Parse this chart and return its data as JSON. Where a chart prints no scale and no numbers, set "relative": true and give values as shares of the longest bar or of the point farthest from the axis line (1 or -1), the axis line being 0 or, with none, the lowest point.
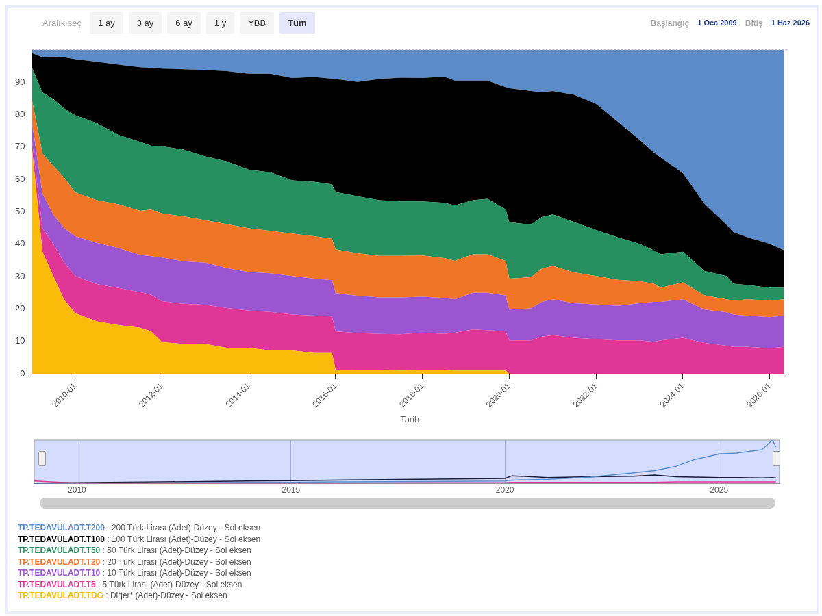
{
  "chart_data": [
    {
      "type": "other",
      "title": "Aralık seç",
      "categories": [
        "1 ay",
        "3 ay",
        "6 ay",
        "1 y",
        "YBB",
        "Tüm"
      ],
      "annotations": [
        "Başlangıç",
        "1 Oca 2009",
        "Bitiş",
        "1 Haz 2026"
      ]
    },
    {
      "type": "area",
      "stacked": true,
      "xlabel": "Tarih",
      "legend": "bottom",
      "x": [
        "2009-01",
        "2009-04",
        "2009-07",
        "2009-10",
        "2010-01",
        "2010-07",
        "2011-01",
        "2011-07",
        "2011-10",
        "2012-01",
        "2012-07",
        "2013-01",
        "2013-07",
        "2014-01",
        "2014-07",
        "2015-01",
        "2015-07",
        "2015-12",
        "2016-01",
        "2016-07",
        "2017-01",
        "2017-07",
        "2018-01",
        "2018-07",
        "2018-10",
        "2019-03",
        "2019-07",
        "2019-12",
        "2020-01",
        "2020-07",
        "2020-10",
        "2021-01",
        "2021-07",
        "2022-01",
        "2022-07",
        "2023-01",
        "2023-05",
        "2023-07",
        "2024-01",
        "2024-07",
        "2025-01",
        "2025-03",
        "2025-07",
        "2026-01",
        "2026-05"
      ],
      "xlim": [
        "2009-01",
        "2026-06"
      ],
      "xticks": [
        "2010-01",
        "2012-01",
        "2014-01",
        "2016-01",
        "2018-01",
        "2020-01",
        "2022-01",
        "2024-01",
        "2026-01"
      ],
      "ylim": [
        0,
        100
      ],
      "yticks": [
        0,
        10,
        20,
        30,
        40,
        50,
        60,
        70,
        80,
        90,
        {
          "value": 100,
          "label": null
        }
      ],
      "series": [
        {
          "name": "TP.TEDAVULADT.TDG : Diğer* (Adet)-Düzey - Sol eksen",
          "color": "#fbbc09",
          "values": [
            70.0,
            37.6,
            30.2,
            22.8,
            18.7,
            16.2,
            15.0,
            14.2,
            13.1,
            9.8,
            9.2,
            9.2,
            8.0,
            8.0,
            7.2,
            7.2,
            6.4,
            6.4,
            1.3,
            1.2,
            1.2,
            1.0,
            1.2,
            1.2,
            1.0,
            1.0,
            1.0,
            1.0,
            0,
            0,
            0,
            0,
            0,
            0,
            0,
            0,
            0,
            0,
            0,
            0,
            0,
            0,
            0,
            0,
            0
          ]
        },
        {
          "name": "TP.TEDAVULADT.T5 : 5 Türk Lirası (Adet)-Düzey - Sol eksen",
          "color": "#e03797",
          "values": [
            2.5,
            7.3,
            9.8,
            11.5,
            11.5,
            11.5,
            11.5,
            11.0,
            11.3,
            12.6,
            12.4,
            12.1,
            12.3,
            11.5,
            11.9,
            11.1,
            11.6,
            11.3,
            11.8,
            11.4,
            11.1,
            11.2,
            11.5,
            11.1,
            11.7,
            12.7,
            12.5,
            12.1,
            10.3,
            10.3,
            11.5,
            11.9,
            11.1,
            10.7,
            10.3,
            10.3,
            9.9,
            10.3,
            11.1,
            9.5,
            8.7,
            8.3,
            8.3,
            7.9,
            8.3
          ]
        },
        {
          "name": "TP.TEDAVULADT.T10 : 10 Türk Lirası (Adet)-Düzey - Sol eksen",
          "color": "#9c55d1",
          "values": [
            5.3,
            10.7,
            9.1,
            10.6,
            12.3,
            12.7,
            12.3,
            11.5,
            11.9,
            13.5,
            13.1,
            13.0,
            12.3,
            11.9,
            11.9,
            11.9,
            11.4,
            11.2,
            11.8,
            11.5,
            11.3,
            11.4,
            11.1,
            11.1,
            10.3,
            11.3,
            11.5,
            11.1,
            9.5,
            9.9,
            10.7,
            11.1,
            10.7,
            10.7,
            10.7,
            11.5,
            12.3,
            11.9,
            11.9,
            10.3,
            10.3,
            10.0,
            9.6,
            9.6,
            9.6
          ]
        },
        {
          "name": "TP.TEDAVULADT.T20 : 20 Türk Lirası (Adet)-Düzey - Sol eksen",
          "color": "#f07527",
          "values": [
            7.0,
            12.3,
            15.1,
            15.6,
            13.5,
            13.2,
            13.5,
            13.6,
            14.4,
            13.6,
            13.9,
            13.1,
            13.6,
            13.5,
            13.1,
            13.1,
            13.1,
            12.8,
            13.5,
            13.1,
            12.8,
            12.8,
            12.7,
            12.3,
            11.9,
            11.9,
            11.9,
            10.7,
            9.6,
            9.6,
            10.3,
            10.3,
            9.5,
            8.8,
            8.0,
            6.8,
            5.6,
            4.4,
            5.2,
            4.4,
            4.0,
            4.3,
            5.1,
            5.1,
            5.1
          ]
        },
        {
          "name": "TP.TEDAVULADT.T50 : 50 Türk Lirası (Adet)-Düzey - Sol eksen",
          "color": "#279060",
          "values": [
            9.8,
            18.9,
            20.6,
            21.4,
            23.8,
            23.8,
            21.4,
            21.3,
            19.7,
            20.7,
            20.6,
            19.7,
            19.3,
            18.1,
            18.1,
            16.4,
            16.8,
            16.8,
            17.7,
            17.6,
            17.2,
            16.8,
            16.7,
            17.1,
            17.1,
            16.7,
            17.1,
            15.9,
            17.4,
            16.2,
            15.9,
            15.9,
            15.5,
            14.2,
            13.1,
            11.5,
            10.3,
            10.3,
            9.5,
            7.5,
            7.2,
            5.2,
            4.4,
            4.0,
            3.6
          ]
        },
        {
          "name": "TP.TEDAVULADT.T100 : 100 Türk Lirası (Adet)-Düzey - Sol eksen",
          "color": "#000000",
          "values": [
            4.4,
            10.9,
            13.1,
            15.8,
            17.3,
            18.9,
            21.7,
            23.0,
            24.0,
            24.0,
            24.8,
            26.7,
            27.9,
            29.6,
            30.4,
            31.6,
            32.3,
            32.6,
            34.9,
            35.3,
            37.4,
            38.2,
            38.1,
            38.9,
            38.5,
            36.9,
            36.5,
            37.7,
            41.3,
            41.3,
            38.5,
            38.1,
            39.3,
            38.9,
            35.7,
            32.1,
            30.2,
            29.8,
            24.2,
            20.7,
            15.8,
            15.9,
            14.7,
            13.5,
            11.5
          ]
        },
        {
          "name": "TP.TEDAVULADT.T200 : 200 Türk Lirası (Adet)-Düzey - Sol eksen",
          "color": "#5b8bc8",
          "values": [
            1.0,
            2.3,
            2.1,
            2.3,
            2.9,
            3.7,
            4.6,
            5.4,
            5.6,
            5.8,
            6.0,
            6.2,
            6.6,
            7.4,
            7.4,
            8.7,
            8.4,
            8.9,
            9.0,
            9.9,
            9.0,
            8.6,
            8.7,
            8.3,
            9.5,
            9.5,
            9.5,
            11.5,
            11.9,
            12.7,
            13.1,
            12.7,
            13.9,
            16.7,
            22.2,
            27.8,
            31.7,
            33.3,
            38.1,
            47.6,
            54.0,
            56.3,
            57.9,
            59.9,
            61.9
          ]
        }
      ]
    },
    {
      "type": "line",
      "relative": true,
      "grid": "x",
      "tick_labels": "x",
      "x": [
        "2009-01",
        "2010-01",
        "2012-01",
        "2014-01",
        "2015-01",
        "2016-01",
        "2018-01",
        "2020-01",
        "2020-03",
        "2021-01",
        "2022-01",
        "2023-01",
        "2023-07",
        "2024-01",
        "2024-06",
        "2025-01",
        "2025-06",
        "2026-01",
        "2026-04",
        "2026-05"
      ],
      "xlim": [
        "2009-01",
        "2026-06"
      ],
      "xticks": [
        {
          "value": "2010-01",
          "label": "2010"
        },
        {
          "value": "2015-01",
          "label": "2015"
        },
        {
          "value": "2020-01",
          "label": "2020"
        },
        {
          "value": "2025-01",
          "label": "2025"
        }
      ],
      "series": [
        {
          "color": "#5b8bc8",
          "values": [
            0.0,
            0.01,
            0.02,
            0.03,
            0.03,
            0.04,
            0.05,
            0.06,
            0.08,
            0.1,
            0.15,
            0.25,
            0.3,
            0.4,
            0.55,
            0.68,
            0.7,
            0.78,
            1.0,
            0.85
          ]
        },
        {
          "color": "#1a1a3a",
          "values": [
            0.01,
            0.02,
            0.04,
            0.06,
            0.07,
            0.08,
            0.1,
            0.12,
            0.18,
            0.14,
            0.16,
            0.17,
            0.2,
            0.16,
            0.15,
            0.14,
            0.14,
            0.13,
            0.14,
            0.13
          ]
        },
        {
          "color": "#e03797",
          "values": [
            0.06,
            0.01,
            0.01,
            0.01,
            0.01,
            0.01,
            0.02,
            0.02,
            0.03,
            0.03,
            0.03,
            0.03,
            0.03,
            0.04,
            0.04,
            0.04,
            0.04,
            0.04,
            0.04,
            0.04
          ]
        }
      ]
    }
  ]
}
